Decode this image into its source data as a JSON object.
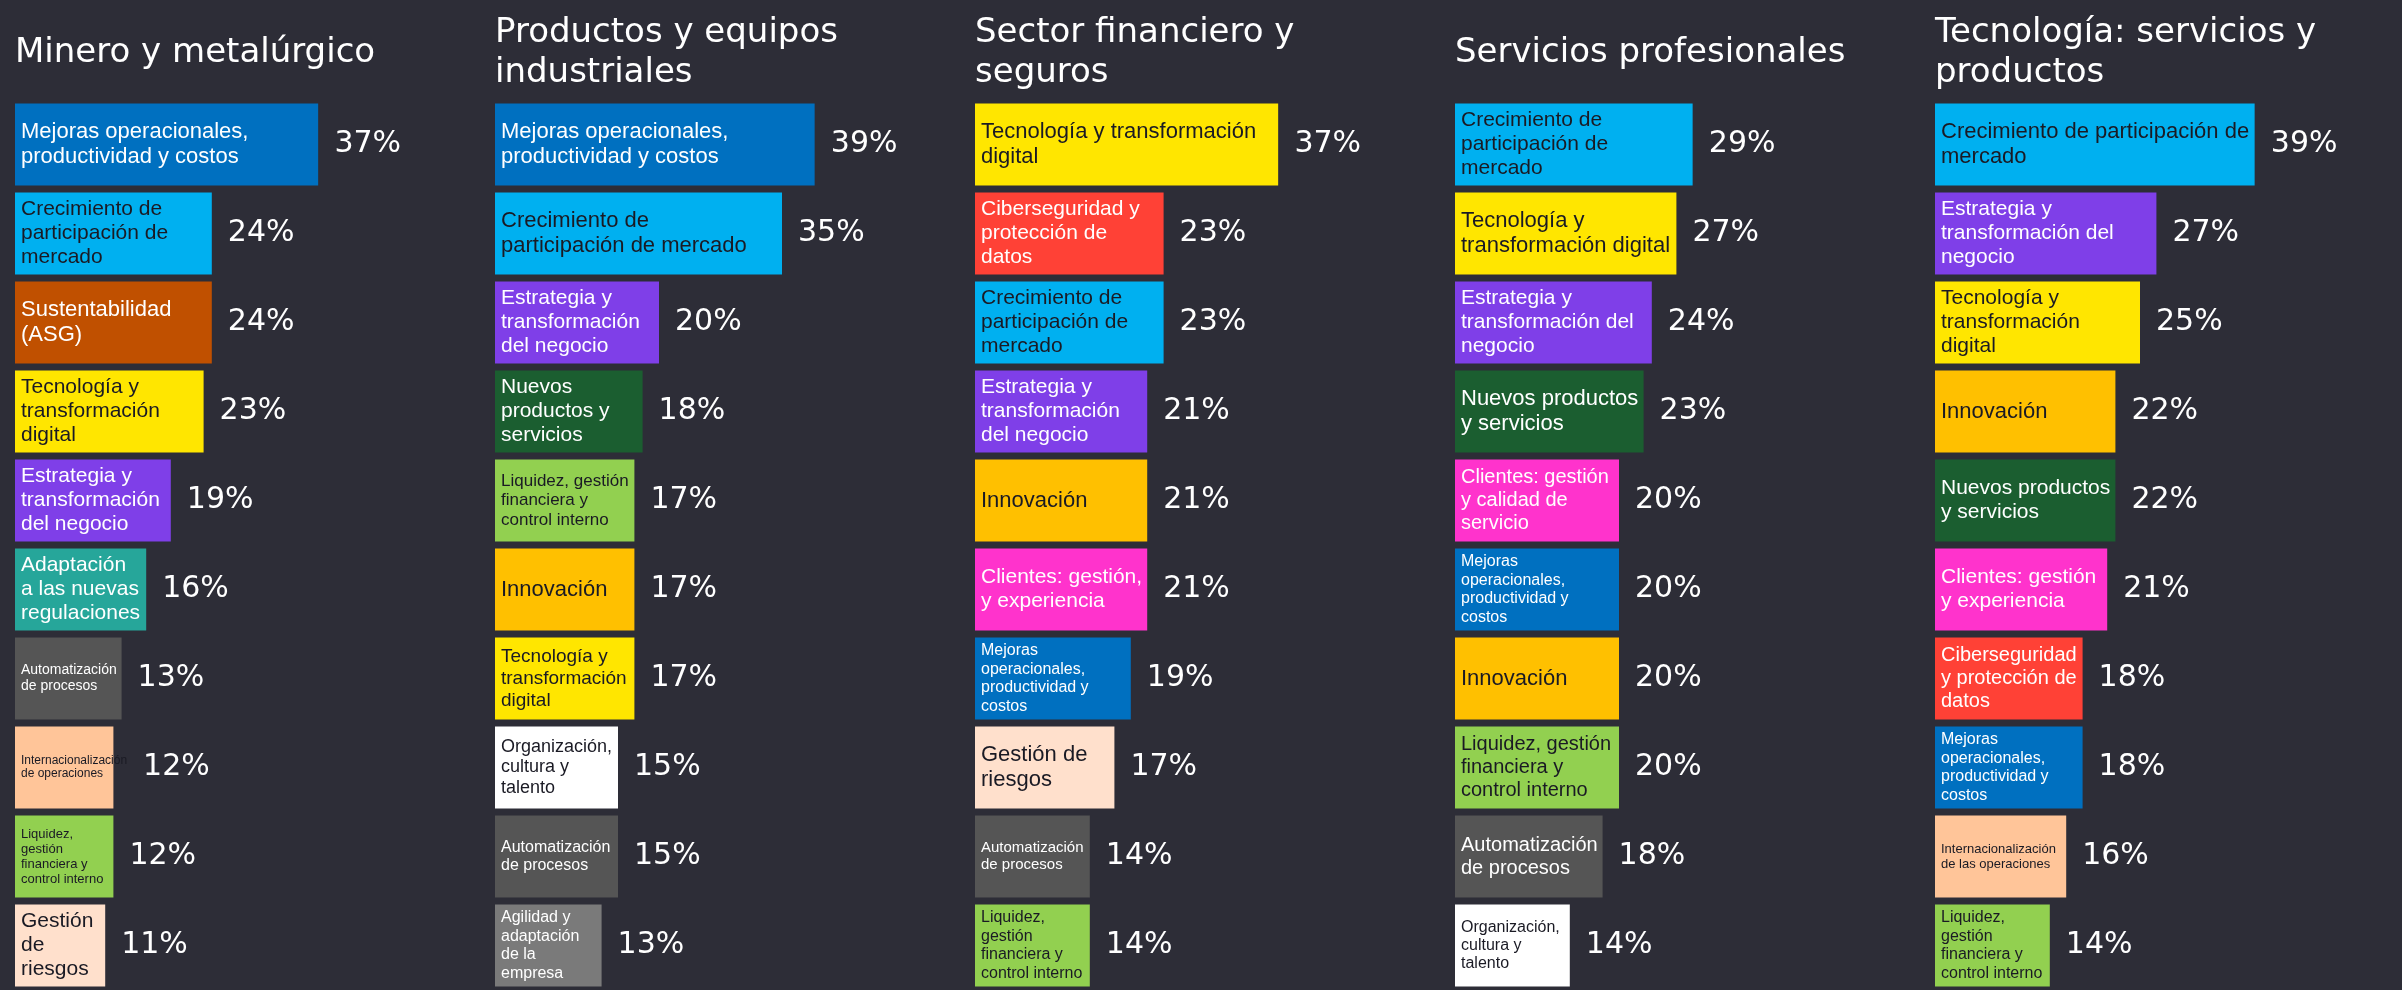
{
  "chart_data": [
    {
      "type": "bar",
      "orientation": "horizontal",
      "title": "Minero y metalúrgico",
      "tick_labels": false,
      "categories": [
        "Mejoras operacionales, productividad y costos",
        "Crecimiento de participación de mercado",
        "Sustentabilidad (ASG)",
        "Tecnología y transformación digital",
        "Estrategia y transformación del negocio",
        "Adaptación a las nuevas regulaciones",
        "Automatización de procesos",
        "Internacionalización de operaciones",
        "Liquidez, gestión financiera y control interno",
        "Gestión de riesgos"
      ],
      "values": [
        37,
        24,
        24,
        23,
        19,
        16,
        13,
        12,
        12,
        11
      ],
      "value_labels": [
        "37%",
        "24%",
        "24%",
        "23%",
        "19%",
        "16%",
        "13%",
        "12%",
        "12%",
        "11%"
      ],
      "colors": [
        "#0070c0",
        "#00b0f0",
        "#c05000",
        "#ffe600",
        "#7f3fe8",
        "#26a69a",
        "#555555",
        "#ffc599",
        "#92d050",
        "#ffe0cc"
      ]
    },
    {
      "type": "bar",
      "orientation": "horizontal",
      "title": "Productos y equipos industriales",
      "tick_labels": false,
      "categories": [
        "Mejoras operacionales, productividad y costos",
        "Crecimiento de participación de mercado",
        "Estrategia y transformación del negocio",
        "Nuevos productos y servicios",
        "Liquidez, gestión financiera y control interno",
        "Innovación",
        "Tecnología y transformación digital",
        "Organización, cultura y talento",
        "Automatización de procesos",
        "Agilidad y adaptación de la empresa"
      ],
      "values": [
        39,
        35,
        20,
        18,
        17,
        17,
        17,
        15,
        15,
        13
      ],
      "value_labels": [
        "39%",
        "35%",
        "20%",
        "18%",
        "17%",
        "17%",
        "17%",
        "15%",
        "15%",
        "13%"
      ],
      "colors": [
        "#0070c0",
        "#00b0f0",
        "#7f3fe8",
        "#1b5e30",
        "#92d050",
        "#ffc000",
        "#ffe600",
        "#ffffff",
        "#555555",
        "#7a7a7a"
      ]
    },
    {
      "type": "bar",
      "orientation": "horizontal",
      "title": "Sector financiero y seguros",
      "tick_labels": false,
      "categories": [
        "Tecnología y transformación digital",
        "Ciberseguridad y protección de datos",
        "Crecimiento de participación de mercado",
        "Estrategia y transformación del negocio",
        "Innovación",
        "Clientes: gestión, y experiencia",
        "Mejoras operacionales, productividad y costos",
        "Gestión de riesgos",
        "Automatización de procesos",
        "Liquidez, gestión financiera y control interno"
      ],
      "values": [
        37,
        23,
        23,
        21,
        21,
        21,
        19,
        17,
        14,
        14
      ],
      "value_labels": [
        "37%",
        "23%",
        "23%",
        "21%",
        "21%",
        "21%",
        "19%",
        "17%",
        "14%",
        "14%"
      ],
      "colors": [
        "#ffe600",
        "#ff4136",
        "#00b0f0",
        "#7f3fe8",
        "#ffc000",
        "#ff33cc",
        "#0070c0",
        "#ffe0cc",
        "#555555",
        "#92d050"
      ]
    },
    {
      "type": "bar",
      "orientation": "horizontal",
      "title": "Servicios profesionales",
      "tick_labels": false,
      "categories": [
        "Crecimiento de participación de mercado",
        "Tecnología y transformación digital",
        "Estrategia y transformación del negocio",
        "Nuevos productos y servicios",
        "Clientes: gestión y calidad de servicio",
        "Mejoras operacionales, productividad y costos",
        "Innovación",
        "Liquidez, gestión financiera y control interno",
        "Automatización de procesos",
        "Organización, cultura y talento"
      ],
      "values": [
        29,
        27,
        24,
        23,
        20,
        20,
        20,
        20,
        18,
        14
      ],
      "value_labels": [
        "29%",
        "27%",
        "24%",
        "23%",
        "20%",
        "20%",
        "20%",
        "20%",
        "18%",
        "14%"
      ],
      "colors": [
        "#00b0f0",
        "#ffe600",
        "#7f3fe8",
        "#1b5e30",
        "#ff33cc",
        "#0070c0",
        "#ffc000",
        "#92d050",
        "#555555",
        "#ffffff"
      ]
    },
    {
      "type": "bar",
      "orientation": "horizontal",
      "title": "Tecnología: servicios y productos",
      "tick_labels": false,
      "categories": [
        "Crecimiento de participación de mercado",
        "Estrategia y transformación del negocio",
        "Tecnología y transformación digital",
        "Innovación",
        "Nuevos productos y servicios",
        "Clientes: gestión y experiencia",
        "Ciberseguridad y protección de datos",
        "Mejoras operacionales, productividad y costos",
        "Internacionalización de las operaciones",
        "Liquidez, gestión financiera y control interno"
      ],
      "values": [
        39,
        27,
        25,
        22,
        22,
        21,
        18,
        18,
        16,
        14
      ],
      "value_labels": [
        "39%",
        "27%",
        "25%",
        "22%",
        "22%",
        "21%",
        "18%",
        "18%",
        "16%",
        "14%"
      ],
      "colors": [
        "#00b0f0",
        "#7f3fe8",
        "#ffe600",
        "#ffc000",
        "#1b5e30",
        "#ff33cc",
        "#ff4136",
        "#0070c0",
        "#ffc599",
        "#92d050"
      ]
    }
  ]
}
